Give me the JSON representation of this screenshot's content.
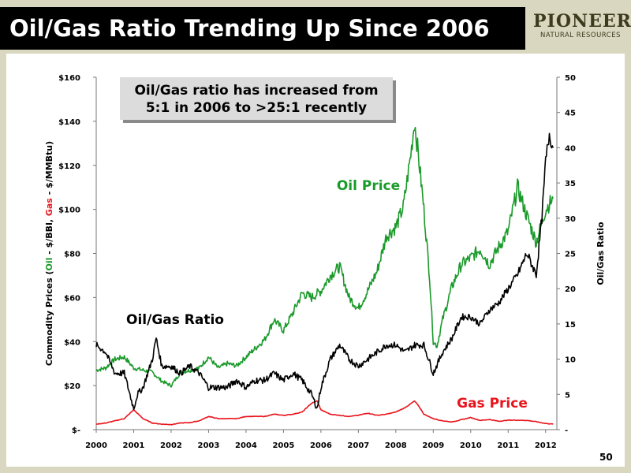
{
  "slide": {
    "title": "Oil/Gas Ratio Trending Up Since 2006",
    "logo_name": "PIONEER",
    "logo_sub": "NATURAL RESOURCES",
    "page_number": "50"
  },
  "chart_data": {
    "type": "line",
    "title": "",
    "ylabel_left_parts": [
      "Commodity Prices (",
      "Oil",
      " - $/BBl, ",
      "Gas",
      " - $/MMBtu)"
    ],
    "ylabel_right": "Oil/Gas Ratio",
    "x_ticks": [
      "2000",
      "2001",
      "2002",
      "2003",
      "2004",
      "2005",
      "2006",
      "2007",
      "2008",
      "2009",
      "2010",
      "2011",
      "2012"
    ],
    "xlim": [
      2000,
      2012.3
    ],
    "y_left_ticks": [
      "$-",
      "$20",
      "$40",
      "$60",
      "$80",
      "$100",
      "$120",
      "$140",
      "$160"
    ],
    "ylim_left": [
      0,
      160
    ],
    "y_right_ticks": [
      "-",
      "5",
      "10",
      "15",
      "20",
      "25",
      "30",
      "35",
      "40",
      "45",
      "50"
    ],
    "ylim_right": [
      0,
      50
    ],
    "grid": false,
    "colors": {
      "oil": "#1a9a2a",
      "gas": "#e8141c",
      "ratio": "#000000"
    },
    "callout": [
      "Oil/Gas ratio has increased from",
      "5:1 in 2006 to >25:1 recently"
    ],
    "labels": {
      "oil": "Oil Price",
      "gas": "Gas Price",
      "ratio": "Oil/Gas Ratio"
    },
    "series": [
      {
        "key": "oil",
        "axis": "left",
        "x": [
          2000.0,
          2000.25,
          2000.5,
          2000.75,
          2001.0,
          2001.25,
          2001.5,
          2001.75,
          2002.0,
          2002.25,
          2002.5,
          2002.75,
          2003.0,
          2003.25,
          2003.5,
          2003.75,
          2004.0,
          2004.25,
          2004.5,
          2004.75,
          2005.0,
          2005.25,
          2005.5,
          2005.75,
          2006.0,
          2006.25,
          2006.5,
          2006.75,
          2007.0,
          2007.25,
          2007.5,
          2007.75,
          2008.0,
          2008.2,
          2008.4,
          2008.5,
          2008.6,
          2008.75,
          2008.9,
          2009.0,
          2009.1,
          2009.25,
          2009.5,
          2009.75,
          2010.0,
          2010.25,
          2010.5,
          2010.75,
          2011.0,
          2011.25,
          2011.5,
          2011.75,
          2012.0,
          2012.2
        ],
        "y": [
          27,
          28,
          32,
          33,
          28,
          27,
          26,
          22,
          20,
          26,
          27,
          28,
          33,
          28,
          30,
          29,
          33,
          37,
          41,
          50,
          45,
          53,
          62,
          60,
          63,
          70,
          74,
          60,
          55,
          63,
          72,
          88,
          92,
          101,
          125,
          140,
          125,
          100,
          70,
          40,
          38,
          50,
          65,
          75,
          78,
          82,
          75,
          83,
          90,
          110,
          97,
          85,
          100,
          105
        ]
      },
      {
        "key": "gas",
        "axis": "left",
        "x": [
          2000.0,
          2000.25,
          2000.5,
          2000.75,
          2001.0,
          2001.25,
          2001.5,
          2001.75,
          2002.0,
          2002.25,
          2002.5,
          2002.75,
          2003.0,
          2003.25,
          2003.5,
          2003.75,
          2004.0,
          2004.25,
          2004.5,
          2004.75,
          2005.0,
          2005.25,
          2005.5,
          2005.75,
          2005.9,
          2006.0,
          2006.25,
          2006.5,
          2006.75,
          2007.0,
          2007.25,
          2007.5,
          2007.75,
          2008.0,
          2008.25,
          2008.5,
          2008.6,
          2008.75,
          2009.0,
          2009.25,
          2009.5,
          2009.75,
          2010.0,
          2010.25,
          2010.5,
          2010.75,
          2011.0,
          2011.25,
          2011.5,
          2011.75,
          2012.0,
          2012.2
        ],
        "y": [
          2.5,
          3,
          4,
          5,
          9,
          5,
          3,
          2.5,
          2.3,
          3,
          3.2,
          4,
          6,
          5,
          5,
          5,
          6,
          6,
          6,
          7,
          6.5,
          7,
          8,
          12,
          13,
          9,
          7,
          6.5,
          6,
          6.5,
          7.5,
          6.5,
          7,
          8,
          10,
          13,
          11,
          7,
          5,
          4,
          3.5,
          4.5,
          5.5,
          4.2,
          4.6,
          3.8,
          4.3,
          4.3,
          4.2,
          3.6,
          2.8,
          2.5
        ]
      },
      {
        "key": "ratio",
        "axis": "right",
        "x": [
          2000.0,
          2000.25,
          2000.5,
          2000.75,
          2001.0,
          2001.1,
          2001.25,
          2001.5,
          2001.6,
          2001.75,
          2002.0,
          2002.25,
          2002.5,
          2002.75,
          2003.0,
          2003.25,
          2003.5,
          2003.75,
          2004.0,
          2004.25,
          2004.5,
          2004.75,
          2005.0,
          2005.25,
          2005.5,
          2005.75,
          2005.9,
          2006.0,
          2006.25,
          2006.5,
          2006.75,
          2007.0,
          2007.25,
          2007.5,
          2007.75,
          2008.0,
          2008.25,
          2008.5,
          2008.75,
          2009.0,
          2009.25,
          2009.5,
          2009.75,
          2010.0,
          2010.25,
          2010.5,
          2010.75,
          2011.0,
          2011.25,
          2011.5,
          2011.75,
          2011.9,
          2012.0,
          2012.1,
          2012.2
        ],
        "y": [
          12,
          11,
          8,
          8,
          3,
          5,
          6,
          10,
          13,
          9,
          9,
          8,
          9,
          8,
          6,
          6,
          6,
          7,
          6,
          7,
          7,
          8,
          7,
          8,
          7,
          5,
          3,
          6,
          10,
          12,
          10,
          9,
          10,
          11,
          12,
          12,
          11,
          12,
          12,
          8,
          11,
          13,
          16,
          16,
          15,
          17,
          18,
          20,
          22,
          25,
          22,
          30,
          38,
          42,
          40
        ]
      }
    ]
  }
}
